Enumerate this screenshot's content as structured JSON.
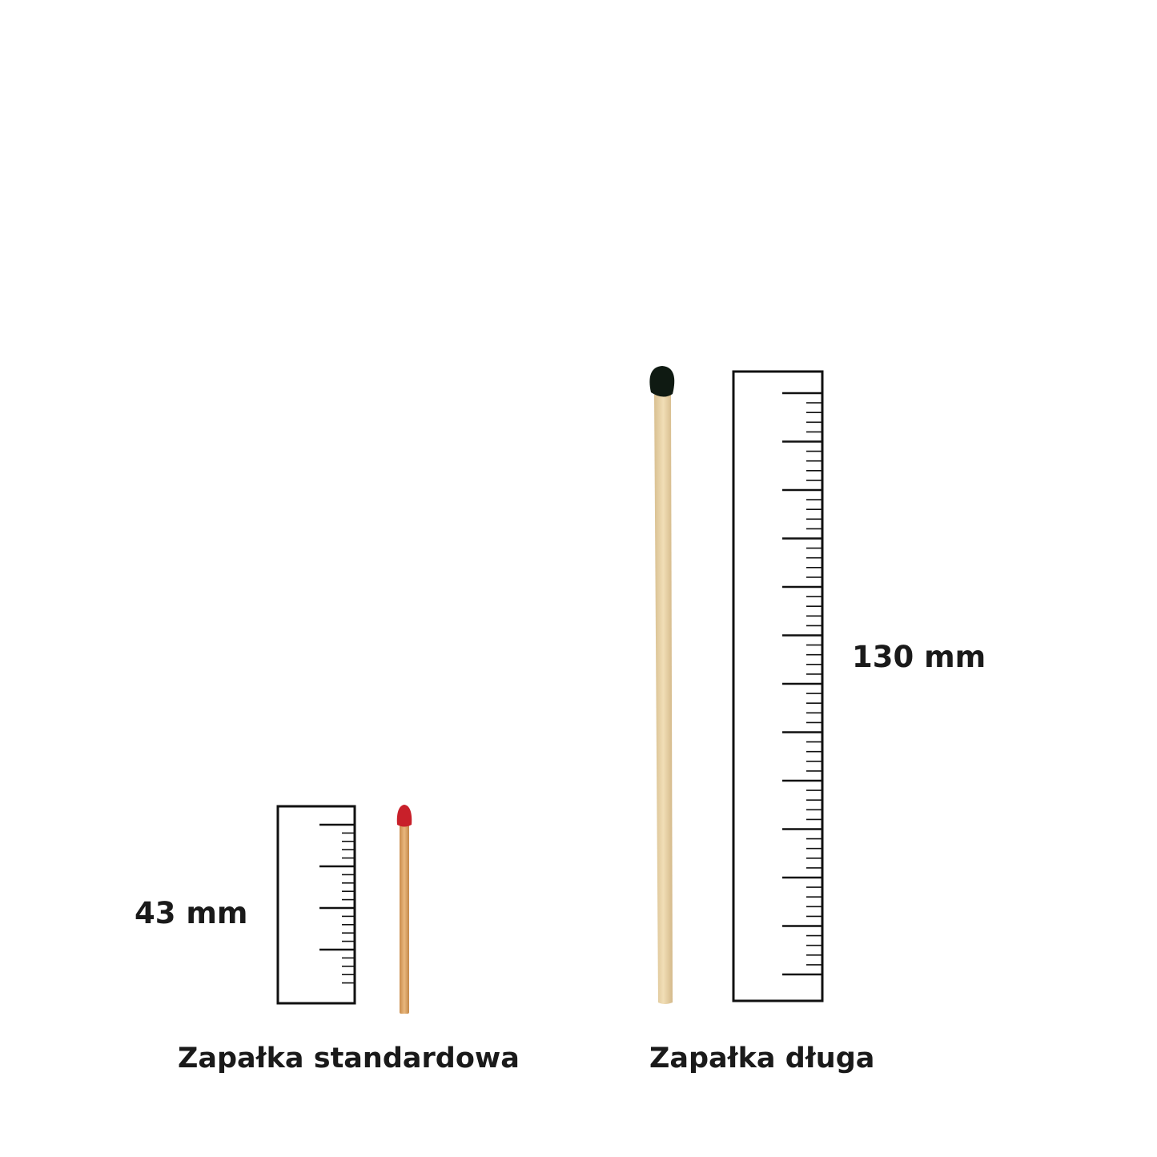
{
  "standard": {
    "length_label": "43 mm",
    "caption": "Zapałka standardowa",
    "head_color": "#c8202a"
  },
  "long": {
    "length_label": "130 mm",
    "caption": "Zapałka długa",
    "head_color": "#0f1a12"
  }
}
